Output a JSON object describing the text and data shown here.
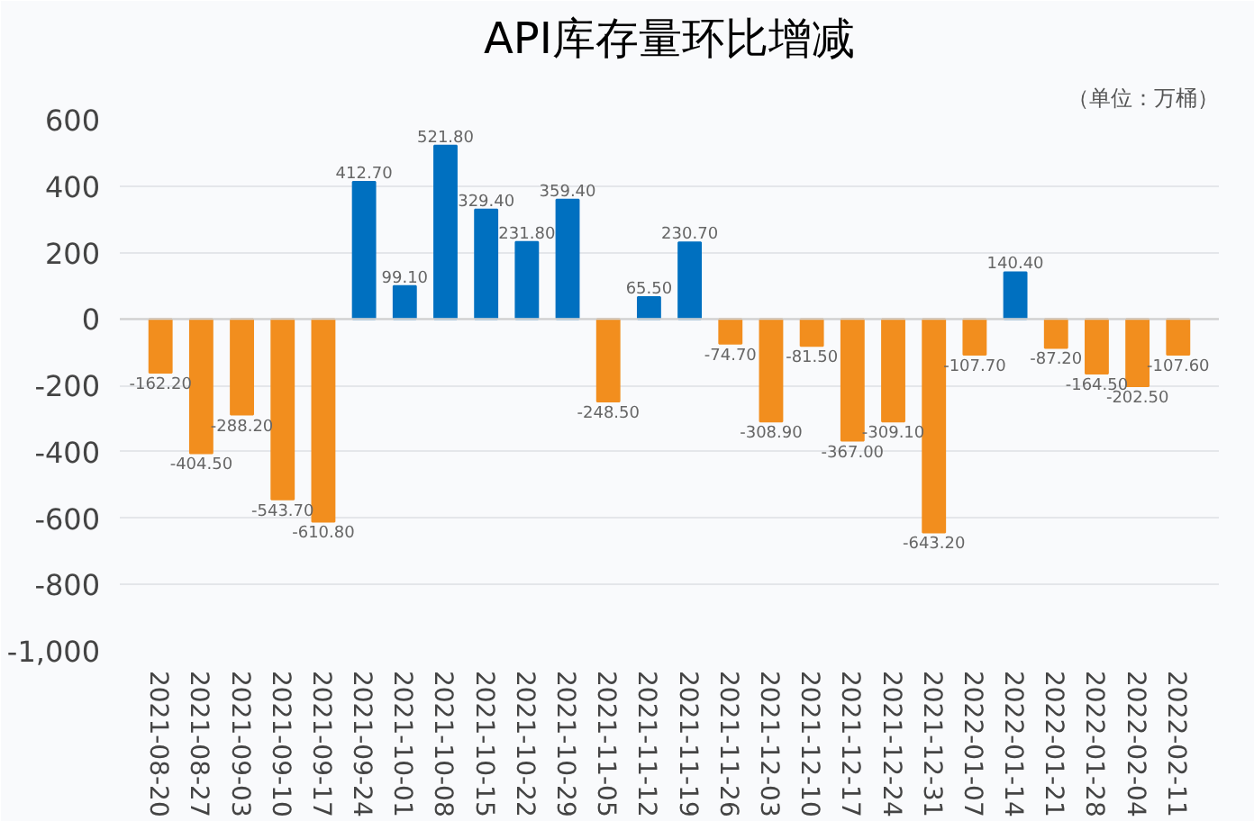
{
  "chart_data": {
    "type": "bar",
    "title": "API库存量环比增减",
    "annotations": [
      "（单位：万桶）"
    ],
    "categories": [
      "2021-08-20",
      "2021-08-27",
      "2021-09-03",
      "2021-09-10",
      "2021-09-17",
      "2021-09-24",
      "2021-10-01",
      "2021-10-08",
      "2021-10-15",
      "2021-10-22",
      "2021-10-29",
      "2021-11-05",
      "2021-11-12",
      "2021-11-19",
      "2021-11-26",
      "2021-12-03",
      "2021-12-10",
      "2021-12-17",
      "2021-12-24",
      "2021-12-31",
      "2022-01-07",
      "2022-01-14",
      "2022-01-21",
      "2022-01-28",
      "2022-02-04",
      "2022-02-11"
    ],
    "values": [
      -162.2,
      -404.5,
      -288.2,
      -543.7,
      -610.8,
      412.7,
      99.1,
      521.8,
      329.4,
      231.8,
      359.4,
      -248.5,
      65.5,
      230.7,
      -74.7,
      -308.9,
      -81.5,
      -367.0,
      -309.1,
      -643.2,
      -107.7,
      140.4,
      -87.2,
      -164.5,
      -202.5,
      -107.6
    ],
    "value_labels": [
      "-162.20",
      "-404.50",
      "-288.20",
      "-543.70",
      "-610.80",
      "412.70",
      "99.10",
      "521.80",
      "329.40",
      "231.80",
      "359.40",
      "-248.50",
      "65.50",
      "230.70",
      "-74.70",
      "-308.90",
      "-81.50",
      "-367.00",
      "-309.10",
      "-643.20",
      "-107.70",
      "140.40",
      "-87.20",
      "-164.50",
      "-202.50",
      "-107.60"
    ],
    "colors": [
      "#f28e1e",
      "#f28e1e",
      "#f28e1e",
      "#f28e1e",
      "#f28e1e",
      "#0070c0",
      "#0070c0",
      "#0070c0",
      "#0070c0",
      "#0070c0",
      "#0070c0",
      "#f28e1e",
      "#0070c0",
      "#0070c0",
      "#f28e1e",
      "#f28e1e",
      "#f28e1e",
      "#f28e1e",
      "#f28e1e",
      "#f28e1e",
      "#f28e1e",
      "#0070c0",
      "#f28e1e",
      "#f28e1e",
      "#f28e1e",
      "#f28e1e"
    ],
    "ylim": [
      -1000,
      600
    ],
    "yticks": [
      {
        "value": -1000,
        "label": "-1,000"
      },
      -800,
      -600,
      -400,
      -200,
      0,
      200,
      400,
      600
    ],
    "grid": "y"
  }
}
